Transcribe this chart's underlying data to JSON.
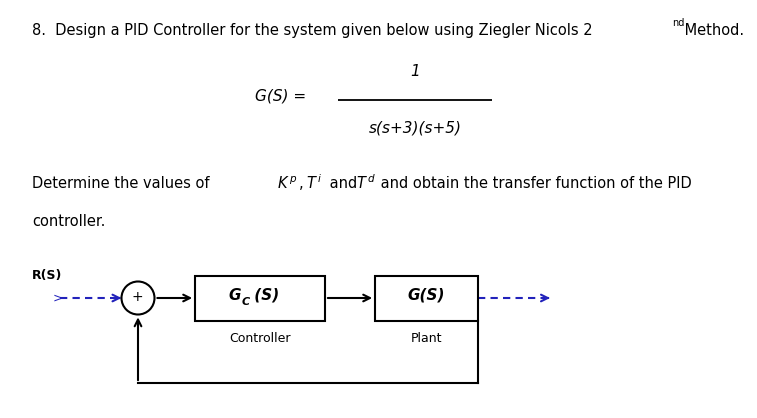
{
  "background_color": "#ffffff",
  "title_text": "8.  Design a PID Controller for the system given below using Ziegler Nicols 2",
  "title_superscript": "nd",
  "title_suffix": " Method.",
  "tf_numerator": "1",
  "tf_denominator": "s(s+3)(s+5)",
  "tf_lhs": "G(S) = ",
  "para_prefix": "Determine the values of ",
  "para_kp": "K",
  "para_kp_sub": "p",
  "para_ti": "T",
  "para_ti_sub": "i",
  "para_td": "T",
  "para_td_sub": "d",
  "para_suffix": " and obtain the transfer function of the PID",
  "para_line2": "controller.",
  "signal_color": "#2222bb",
  "line_color": "#000000",
  "rs_label": "R(S)",
  "gc_label_main": "G",
  "gc_label_sub": "C",
  "gc_label_paren": " (S)",
  "gc_caption": "Controller",
  "gs_label": "G(S)",
  "gs_caption": "Plant"
}
